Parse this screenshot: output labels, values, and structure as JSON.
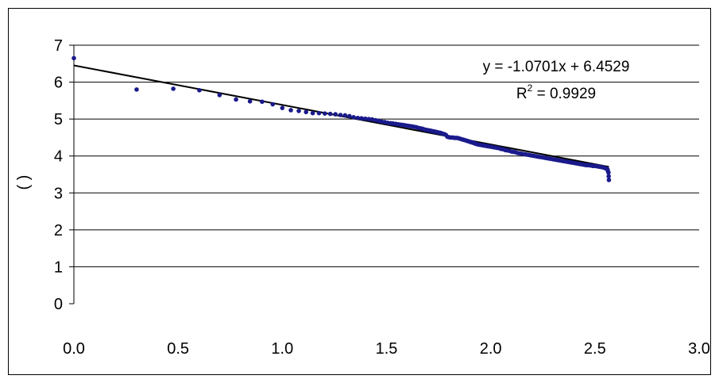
{
  "chart_data": {
    "type": "scatter",
    "title": "",
    "xlabel": "",
    "ylabel": "( )",
    "xlim": [
      0,
      3
    ],
    "ylim": [
      0,
      7
    ],
    "xticks": [
      "0.0",
      "0.5",
      "1.0",
      "1.5",
      "2.0",
      "2.5",
      "3.0"
    ],
    "yticks": [
      "0",
      "1",
      "2",
      "3",
      "4",
      "5",
      "6",
      "7"
    ],
    "grid": "horizontal",
    "legend": "none",
    "marker_color": "#1a1a8c",
    "trendline": {
      "type": "linear",
      "slope": -1.0701,
      "intercept": 6.4529,
      "equation": "y = -1.0701x + 6.4529",
      "r2_label": "R",
      "r2_sup": "2",
      "r2_value": " = 0.9929"
    },
    "series": [
      {
        "x": [
          0.0,
          0.301,
          0.477,
          0.602,
          0.699,
          0.778,
          0.845,
          0.903,
          0.954,
          1.0,
          1.041,
          1.079,
          1.114,
          1.146,
          1.176,
          1.204,
          1.23,
          1.255,
          1.279,
          1.301,
          1.322,
          1.342,
          1.362,
          1.38,
          1.398,
          1.415,
          1.431,
          1.447,
          1.462,
          1.477,
          1.491,
          1.505,
          1.519,
          1.531,
          1.544,
          1.556,
          1.568,
          1.58,
          1.591,
          1.602,
          1.613,
          1.623,
          1.633,
          1.643,
          1.653,
          1.663,
          1.672,
          1.681,
          1.69,
          1.699,
          1.708,
          1.716,
          1.724,
          1.732,
          1.74,
          1.748,
          1.756,
          1.763,
          1.771,
          1.778,
          1.785,
          1.792,
          1.799,
          1.806,
          1.813,
          1.82,
          1.826,
          1.833,
          1.839,
          1.845,
          1.851,
          1.857,
          1.863,
          1.869,
          1.875,
          1.881,
          1.887,
          1.892,
          1.898,
          1.903,
          1.908,
          1.914,
          1.919,
          1.924,
          1.929,
          1.934,
          1.94,
          1.95,
          1.96,
          1.97,
          1.98,
          1.99,
          2.0,
          2.01,
          2.02,
          2.03,
          2.04,
          2.05,
          2.06,
          2.07,
          2.08,
          2.09,
          2.1,
          2.11,
          2.12,
          2.13,
          2.14,
          2.15,
          2.16,
          2.17,
          2.18,
          2.19,
          2.2,
          2.21,
          2.22,
          2.23,
          2.24,
          2.25,
          2.26,
          2.27,
          2.28,
          2.29,
          2.3,
          2.31,
          2.32,
          2.33,
          2.34,
          2.35,
          2.36,
          2.37,
          2.38,
          2.39,
          2.4,
          2.41,
          2.42,
          2.43,
          2.44,
          2.45,
          2.46,
          2.47,
          2.48,
          2.49,
          2.5,
          2.51,
          2.52,
          2.53,
          2.54,
          2.545,
          2.55,
          2.555,
          2.56,
          2.562,
          2.565,
          2.566,
          2.567
        ],
        "y": [
          6.65,
          5.8,
          5.82,
          5.78,
          5.65,
          5.53,
          5.48,
          5.47,
          5.4,
          5.3,
          5.24,
          5.22,
          5.19,
          5.16,
          5.16,
          5.15,
          5.14,
          5.13,
          5.11,
          5.1,
          5.08,
          5.05,
          5.03,
          5.02,
          5.01,
          5.0,
          4.99,
          4.97,
          4.95,
          4.93,
          4.92,
          4.9,
          4.89,
          4.88,
          4.87,
          4.86,
          4.85,
          4.84,
          4.83,
          4.82,
          4.81,
          4.8,
          4.79,
          4.78,
          4.76,
          4.75,
          4.74,
          4.72,
          4.71,
          4.7,
          4.69,
          4.68,
          4.67,
          4.66,
          4.65,
          4.64,
          4.63,
          4.62,
          4.6,
          4.59,
          4.57,
          4.52,
          4.51,
          4.5,
          4.5,
          4.5,
          4.49,
          4.49,
          4.49,
          4.48,
          4.47,
          4.46,
          4.45,
          4.44,
          4.43,
          4.42,
          4.41,
          4.4,
          4.39,
          4.38,
          4.37,
          4.36,
          4.35,
          4.34,
          4.33,
          4.32,
          4.31,
          4.3,
          4.29,
          4.28,
          4.27,
          4.26,
          4.25,
          4.24,
          4.23,
          4.22,
          4.21,
          4.19,
          4.18,
          4.16,
          4.15,
          4.14,
          4.12,
          4.11,
          4.1,
          4.08,
          4.07,
          4.06,
          4.05,
          4.04,
          4.03,
          4.02,
          4.01,
          4.0,
          3.99,
          3.98,
          3.97,
          3.96,
          3.95,
          3.94,
          3.93,
          3.92,
          3.91,
          3.9,
          3.89,
          3.88,
          3.87,
          3.86,
          3.85,
          3.84,
          3.83,
          3.82,
          3.81,
          3.8,
          3.79,
          3.78,
          3.77,
          3.76,
          3.75,
          3.75,
          3.74,
          3.73,
          3.73,
          3.72,
          3.71,
          3.7,
          3.69,
          3.68,
          3.67,
          3.66,
          3.64,
          3.6,
          3.55,
          3.45,
          3.35
        ]
      }
    ]
  }
}
